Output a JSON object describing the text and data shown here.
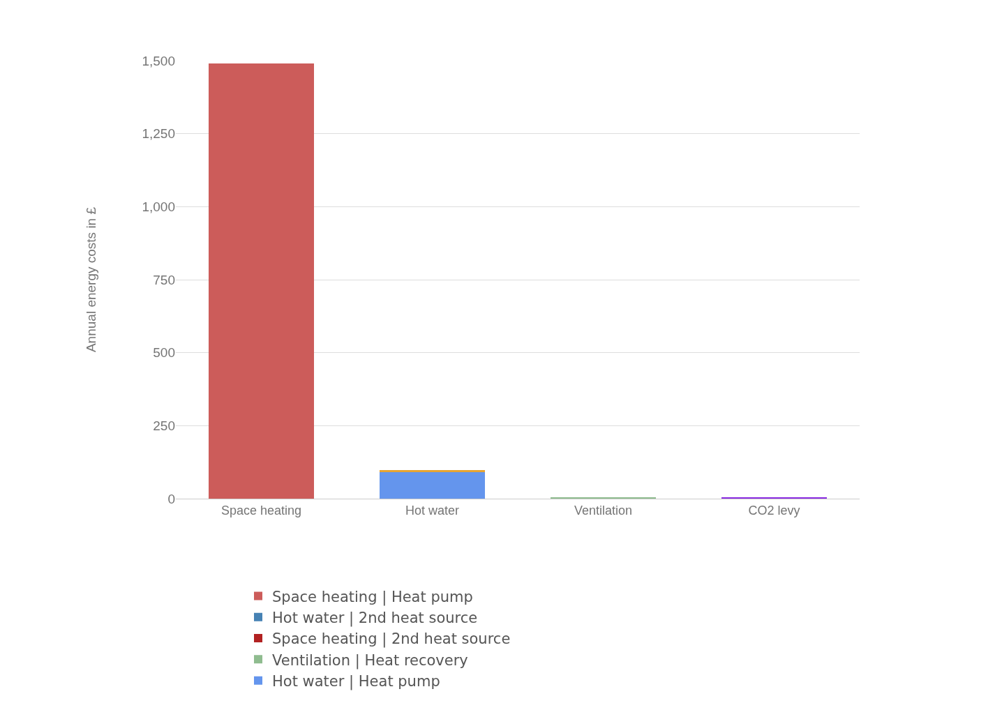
{
  "chart_data": {
    "type": "bar",
    "stacked": true,
    "ylabel": "Annual energy costs in £",
    "categories": [
      "Space heating",
      "Hot water",
      "Ventilation",
      "CO2 levy"
    ],
    "series": [
      {
        "name": "Space heating | Heat pump",
        "color": "#cc5c5a",
        "values": [
          1491,
          0,
          0,
          0
        ]
      },
      {
        "name": "Space heating | 2nd heat source",
        "color": "#b22222",
        "values": [
          0,
          0,
          0,
          0
        ]
      },
      {
        "name": "Hot water | Heat pump",
        "color": "#6495ed",
        "values": [
          0,
          93,
          0,
          0
        ]
      },
      {
        "name": "Hot water | 2nd heat source",
        "color": "#4682b4",
        "values": [
          0,
          0,
          0,
          0
        ]
      },
      {
        "color": "#e6a533",
        "values": [
          0,
          4,
          0,
          0
        ]
      },
      {
        "name": "Ventilation | Heat recovery",
        "color": "#8fbc8f",
        "values": [
          0,
          0,
          4,
          0
        ]
      },
      {
        "color": "#8a2be2",
        "values": [
          0,
          0,
          0,
          5
        ]
      }
    ],
    "ylim": [
      0,
      1500
    ],
    "yticks": [
      0,
      250,
      500,
      750,
      {
        "value": 1000,
        "label": "1,000"
      },
      {
        "value": 1250,
        "label": "1,250"
      },
      {
        "value": 1500,
        "label": "1,500"
      }
    ],
    "grid": "y",
    "legend": "bottom"
  }
}
